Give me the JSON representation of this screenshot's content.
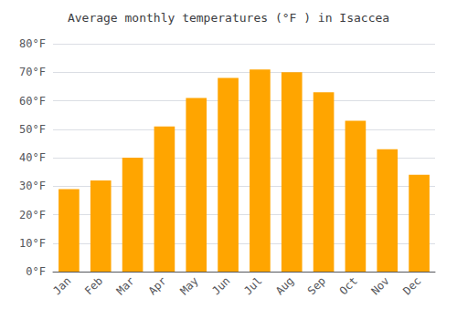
{
  "chart_data": {
    "type": "bar",
    "title": "Average monthly temperatures (°F ) in Isaccea",
    "categories": [
      "Jan",
      "Feb",
      "Mar",
      "Apr",
      "May",
      "Jun",
      "Jul",
      "Aug",
      "Sep",
      "Oct",
      "Nov",
      "Dec"
    ],
    "values": [
      29,
      32,
      40,
      51,
      61,
      68,
      71,
      70,
      63,
      53,
      43,
      34
    ],
    "color": "#FFA500",
    "ylim": [
      0,
      80
    ],
    "yticks": [
      {
        "value": 0,
        "label": "0°F"
      },
      {
        "value": 10,
        "label": "10°F"
      },
      {
        "value": 20,
        "label": "20°F"
      },
      {
        "value": 30,
        "label": "30°F"
      },
      {
        "value": 40,
        "label": "40°F"
      },
      {
        "value": 50,
        "label": "50°F"
      },
      {
        "value": 60,
        "label": "60°F"
      },
      {
        "value": 70,
        "label": "70°F"
      },
      {
        "value": 80,
        "label": "80°F"
      }
    ],
    "grid": true
  }
}
